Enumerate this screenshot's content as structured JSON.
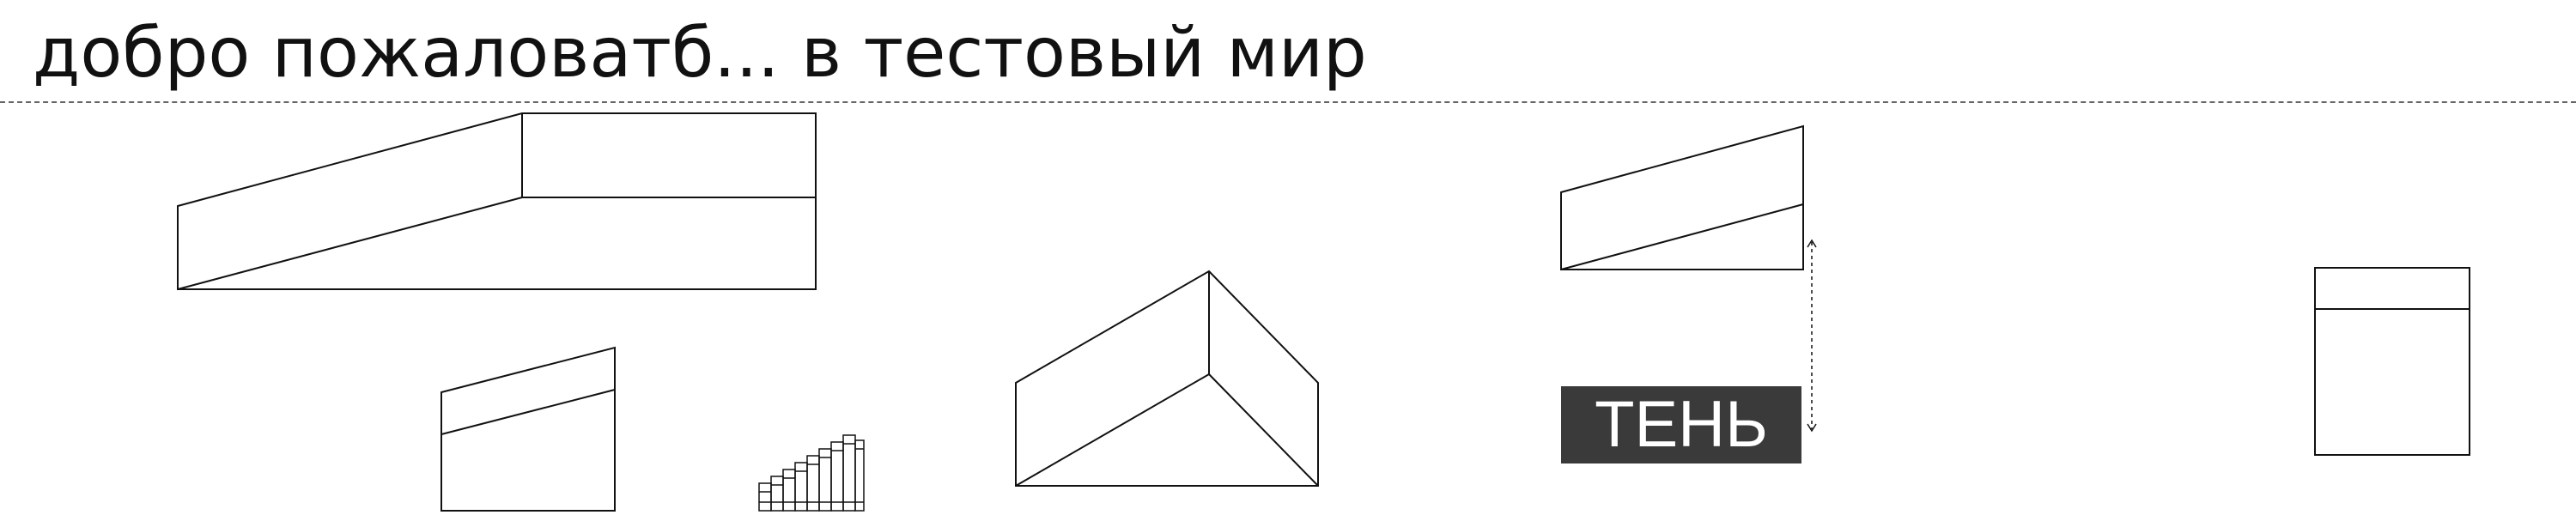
{
  "header": {
    "title": "добро пожаловатб... в тестовый мир"
  },
  "shadow_label": "ТЕНЬ",
  "colors": {
    "line": "#111111",
    "separator": "#666666",
    "label_bg": "#3a3a3a",
    "label_text": "#ffffff"
  }
}
